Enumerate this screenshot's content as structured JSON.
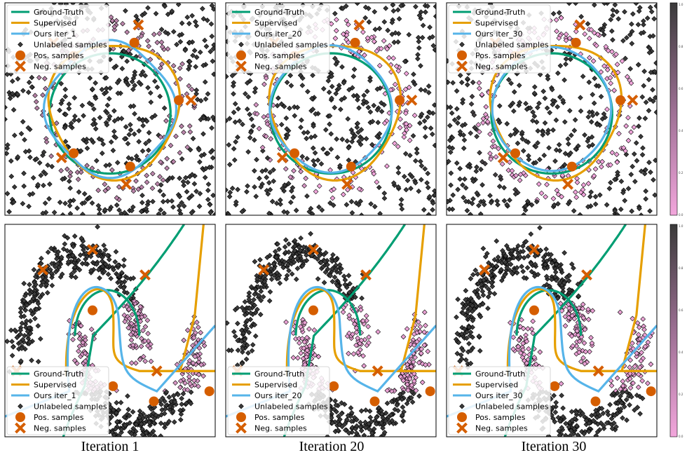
{
  "captions": [
    "Iteration 1",
    "Iteration 20",
    "Iteration 30"
  ],
  "colors": {
    "ground_truth": "#009e73",
    "supervised": "#e69f00",
    "ours": "#56b4e9",
    "samples": "#d55e00",
    "cmap_low": "#f2a6dc",
    "cmap_high": "#3a3a3a"
  },
  "colorbar": {
    "ticks": [
      "1.0",
      "0.8",
      "0.6",
      "0.4",
      "0.2",
      "0.0"
    ]
  },
  "chart_data": [
    {
      "type": "scatter",
      "dataset": "circle",
      "iteration": "Iteration 1",
      "xlim": [
        -1.3,
        1.3
      ],
      "ylim": [
        -1.2,
        1.2
      ],
      "grid": false,
      "legend_position": "upper-left",
      "legend": [
        "Ground-Truth",
        "Supervised",
        "Ours iter_1",
        "Unlabeled samples",
        "Pos. samples",
        "Neg. samples"
      ],
      "pos_samples": [
        [
          -0.45,
          0.6
        ],
        [
          0.3,
          0.75
        ],
        [
          0.85,
          0.1
        ],
        [
          -0.45,
          -0.5
        ],
        [
          0.25,
          -0.65
        ]
      ],
      "neg_samples": [
        [
          -0.7,
          0.75
        ],
        [
          0.35,
          0.95
        ],
        [
          1.0,
          0.1
        ],
        [
          -0.6,
          -0.55
        ],
        [
          0.2,
          -0.85
        ]
      ],
      "ground_truth_radius": 0.68,
      "supervised_radius": [
        0.75,
        0.85
      ],
      "ours_radius": [
        0.7,
        0.78
      ]
    },
    {
      "type": "scatter",
      "dataset": "circle",
      "iteration": "Iteration 20",
      "xlim": [
        -1.3,
        1.3
      ],
      "ylim": [
        -1.2,
        1.2
      ],
      "grid": false,
      "legend_position": "upper-left",
      "legend": [
        "Ground-Truth",
        "Supervised",
        "Ours iter_20",
        "Unlabeled samples",
        "Pos. samples",
        "Neg. samples"
      ],
      "pos_samples": [
        [
          -0.45,
          0.6
        ],
        [
          0.3,
          0.75
        ],
        [
          0.85,
          0.1
        ],
        [
          -0.45,
          -0.5
        ],
        [
          0.25,
          -0.65
        ]
      ],
      "neg_samples": [
        [
          -0.7,
          0.75
        ],
        [
          0.35,
          0.95
        ],
        [
          1.0,
          0.1
        ],
        [
          -0.6,
          -0.55
        ],
        [
          0.2,
          -0.85
        ]
      ],
      "ground_truth_radius": 0.68,
      "supervised_radius": [
        0.75,
        0.85
      ],
      "ours_radius": [
        0.68,
        0.72
      ]
    },
    {
      "type": "scatter",
      "dataset": "circle",
      "iteration": "Iteration 30",
      "xlim": [
        -1.3,
        1.3
      ],
      "ylim": [
        -1.2,
        1.2
      ],
      "grid": false,
      "legend_position": "upper-left",
      "legend": [
        "Ground-Truth",
        "Supervised",
        "Ours iter_30",
        "Unlabeled samples",
        "Pos. samples",
        "Neg. samples"
      ],
      "pos_samples": [
        [
          -0.45,
          0.6
        ],
        [
          0.3,
          0.75
        ],
        [
          0.85,
          0.1
        ],
        [
          -0.45,
          -0.5
        ],
        [
          0.25,
          -0.65
        ]
      ],
      "neg_samples": [
        [
          -0.7,
          0.75
        ],
        [
          0.35,
          0.95
        ],
        [
          1.0,
          0.1
        ],
        [
          -0.6,
          -0.55
        ],
        [
          0.2,
          -0.85
        ]
      ],
      "ground_truth_radius": 0.68,
      "supervised_radius": [
        0.75,
        0.85
      ],
      "ours_radius": [
        0.68,
        0.7
      ]
    },
    {
      "type": "scatter",
      "dataset": "moons",
      "iteration": "Iteration 1",
      "xlim": [
        -1.3,
        2.3
      ],
      "ylim": [
        -0.8,
        1.3
      ],
      "grid": false,
      "legend_position": "lower-left",
      "legend": [
        "Ground-Truth",
        "Supervised",
        "Ours iter_1",
        "Unlabeled samples",
        "Pos. samples",
        "Neg. samples"
      ],
      "pos_samples": [
        [
          0.2,
          0.45
        ],
        [
          0.55,
          -0.3
        ],
        [
          1.25,
          -0.45
        ],
        [
          2.2,
          -0.35
        ]
      ],
      "neg_samples": [
        [
          -0.65,
          0.85
        ],
        [
          0.2,
          1.05
        ],
        [
          1.1,
          0.8
        ],
        [
          -1.1,
          -0.15
        ],
        [
          1.3,
          -0.15
        ]
      ]
    },
    {
      "type": "scatter",
      "dataset": "moons",
      "iteration": "Iteration 20",
      "xlim": [
        -1.3,
        2.3
      ],
      "ylim": [
        -0.8,
        1.3
      ],
      "grid": false,
      "legend_position": "lower-left",
      "legend": [
        "Ground-Truth",
        "Supervised",
        "Ours iter_20",
        "Unlabeled samples",
        "Pos. samples",
        "Neg. samples"
      ],
      "pos_samples": [
        [
          0.2,
          0.45
        ],
        [
          0.55,
          -0.3
        ],
        [
          1.25,
          -0.45
        ],
        [
          2.2,
          -0.35
        ]
      ],
      "neg_samples": [
        [
          -0.65,
          0.85
        ],
        [
          0.2,
          1.05
        ],
        [
          1.1,
          0.8
        ],
        [
          -1.1,
          -0.15
        ],
        [
          1.3,
          -0.15
        ]
      ]
    },
    {
      "type": "scatter",
      "dataset": "moons",
      "iteration": "Iteration 30",
      "xlim": [
        -1.3,
        2.3
      ],
      "ylim": [
        -0.8,
        1.3
      ],
      "grid": false,
      "legend_position": "lower-left",
      "legend": [
        "Ground-Truth",
        "Supervised",
        "Ours iter_30",
        "Unlabeled samples",
        "Pos. samples",
        "Neg. samples"
      ],
      "pos_samples": [
        [
          0.2,
          0.45
        ],
        [
          0.55,
          -0.3
        ],
        [
          1.25,
          -0.45
        ],
        [
          2.2,
          -0.35
        ]
      ],
      "neg_samples": [
        [
          -0.65,
          0.85
        ],
        [
          0.2,
          1.05
        ],
        [
          1.1,
          0.8
        ],
        [
          -1.1,
          -0.15
        ],
        [
          1.3,
          -0.15
        ]
      ]
    }
  ]
}
